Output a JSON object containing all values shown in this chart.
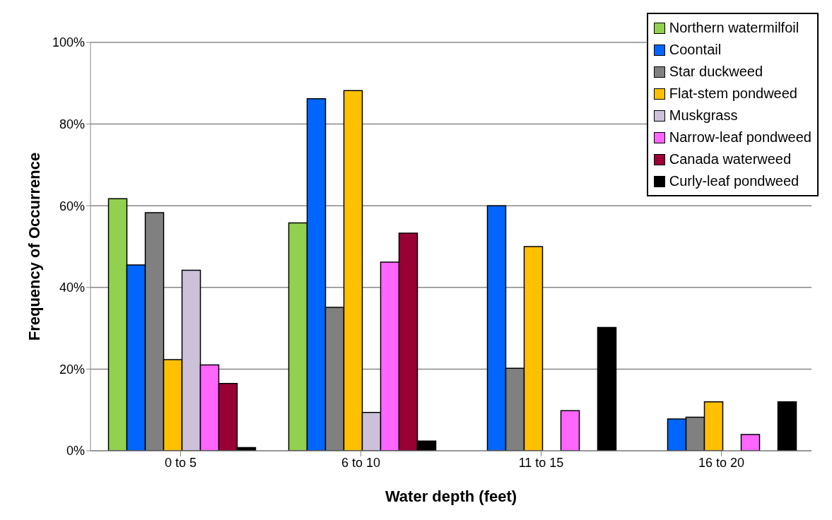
{
  "chart_data": {
    "type": "bar",
    "xlabel": "Water depth (feet)",
    "ylabel": "Frequency of Occurrence",
    "categories": [
      "0 to 5",
      "6 to 10",
      "11 to 15",
      "16 to 20"
    ],
    "series": [
      {
        "name": "Northern watermilfoil",
        "color": "#92d050",
        "values": [
          61.7,
          55.8,
          null,
          null
        ]
      },
      {
        "name": "Coontail",
        "color": "#0066ff",
        "values": [
          45.5,
          86.2,
          60,
          7.8
        ]
      },
      {
        "name": "Star duckweed",
        "color": "#808080",
        "values": [
          58.3,
          35.1,
          20.2,
          8.2
        ]
      },
      {
        "name": "Flat-stem pondweed",
        "color": "#ffc000",
        "values": [
          22.3,
          88.2,
          50,
          12
        ]
      },
      {
        "name": "Muskgrass",
        "color": "#ccc0da",
        "values": [
          44.2,
          9.4,
          null,
          null
        ]
      },
      {
        "name": "Narrow-leaf pondweed",
        "color": "#ff66ff",
        "values": [
          21,
          46.2,
          9.8,
          4
        ]
      },
      {
        "name": "Canada waterweed",
        "color": "#990033",
        "values": [
          16.5,
          53.3,
          null,
          null
        ]
      },
      {
        "name": "Curly-leaf pondweed",
        "color": "#000000",
        "values": [
          0.8,
          2.4,
          30.2,
          12
        ]
      }
    ],
    "ylim": [
      0,
      100
    ],
    "yticks": [
      {
        "value": 0,
        "label": "0%"
      },
      {
        "value": 20,
        "label": "20%"
      },
      {
        "value": 40,
        "label": "40%"
      },
      {
        "value": 60,
        "label": "60%"
      },
      {
        "value": 80,
        "label": "80%"
      },
      {
        "value": 100,
        "label": "100%"
      }
    ],
    "grid": "y",
    "legend": "top right"
  }
}
